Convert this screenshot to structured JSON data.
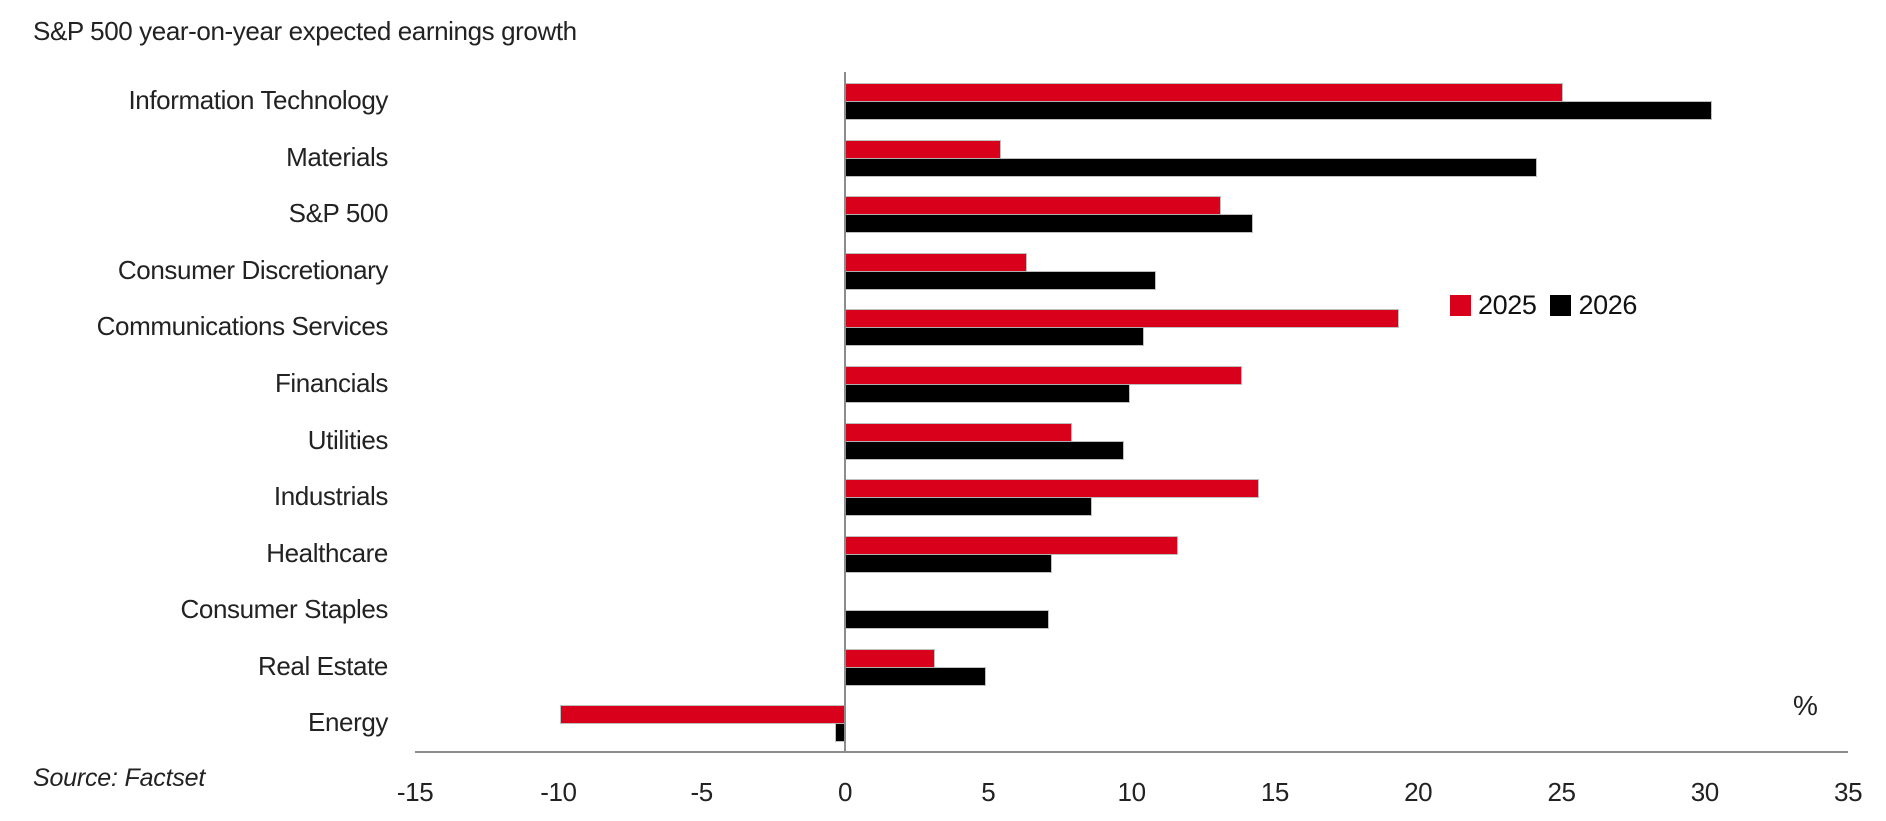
{
  "title": "S&P 500 year-on-year expected earnings growth",
  "source": "Source: Factset",
  "unit_label": "%",
  "colors": {
    "series_2025": "#D9001C",
    "series_2026": "#000000",
    "axis": "#8c8c8c",
    "text": "#222222"
  },
  "legend": {
    "items": [
      {
        "label": "2025",
        "color": "#D9001C"
      },
      {
        "label": "2026",
        "color": "#000000"
      }
    ]
  },
  "chart_data": {
    "type": "bar",
    "orientation": "horizontal",
    "title": "S&P 500 year-on-year expected earnings growth",
    "xlabel": "%",
    "ylabel": "",
    "xlim": [
      -15,
      35
    ],
    "xticks": [
      -15,
      -10,
      -5,
      0,
      5,
      10,
      15,
      20,
      25,
      30,
      35
    ],
    "grid": false,
    "legend_position": "right-middle",
    "categories": [
      "Information Technology",
      "Materials",
      "S&P 500",
      "Consumer Discretionary",
      "Communications Services",
      "Financials",
      "Utilities",
      "Industrials",
      "Healthcare",
      "Consumer Staples",
      "Real Estate",
      "Energy"
    ],
    "series": [
      {
        "name": "2025",
        "color": "#D9001C",
        "values": [
          25.0,
          5.4,
          13.1,
          6.3,
          19.3,
          13.8,
          7.9,
          14.4,
          11.6,
          0.0,
          3.1,
          -9.9
        ]
      },
      {
        "name": "2026",
        "color": "#000000",
        "values": [
          30.2,
          24.1,
          14.2,
          10.8,
          10.4,
          9.9,
          9.7,
          8.6,
          7.2,
          7.1,
          4.9,
          -0.3
        ]
      }
    ]
  }
}
